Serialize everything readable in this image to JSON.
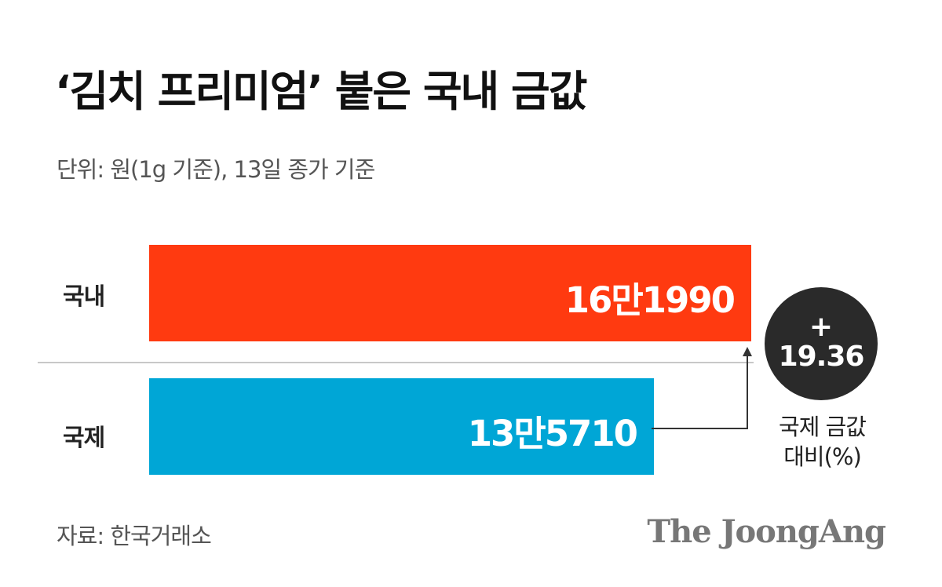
{
  "chart_data": {
    "type": "bar",
    "orientation": "horizontal",
    "title": "‘김치 프리미엄’ 붙은 국내 금값",
    "subtitle": "단위: 원(1g 기준), 13일 종가 기준",
    "categories": [
      "국내",
      "국제"
    ],
    "values": [
      161990,
      135710
    ],
    "value_labels": [
      "16만1990",
      "13만5710"
    ],
    "colors": [
      "#ff3a10",
      "#00a6d6"
    ],
    "xlim": [
      0,
      161990
    ],
    "grid": false,
    "annotation": {
      "sign": "+",
      "value": "19.36",
      "caption_line1": "국제 금값",
      "caption_line2": "대비(%)"
    },
    "source": "자료: 한국거래소",
    "brand": "The JoongAng"
  }
}
